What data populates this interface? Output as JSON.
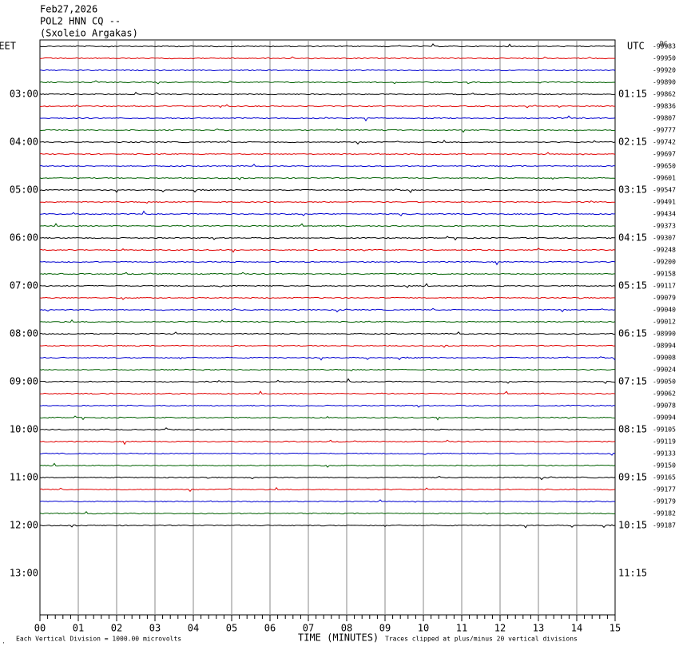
{
  "header": {
    "lines": [
      "Feb27,2026",
      "POL2 HNN CQ --",
      "(Sxoleio Argakas)"
    ]
  },
  "left_labels": [
    "EET",
    "03:00",
    "04:00",
    "05:00",
    "06:00",
    "07:00",
    "08:00",
    "09:00",
    "10:00",
    "11:00",
    "12:00",
    "13:00"
  ],
  "right_labels": [
    "UTC",
    "01:15",
    "02:15",
    "03:15",
    "04:15",
    "05:15",
    "06:15",
    "07:15",
    "08:15",
    "09:15",
    "10:15",
    "11:15"
  ],
  "dc_label": "DC",
  "trace_offsets": [
    "-99983",
    "-99950",
    "-99920",
    "-99890",
    "-99862",
    "-99836",
    "-99807",
    "-99777",
    "-99742",
    "-99697",
    "-99650",
    "-99601",
    "-99547",
    "-99491",
    "-99434",
    "-99373",
    "-99307",
    "-99248",
    "-99200",
    "-99158",
    "-99117",
    "-99079",
    "-99040",
    "-99012",
    "-98990",
    "-98994",
    "-99008",
    "-99024",
    "-99050",
    "-99062",
    "-99078",
    "-99094",
    "-99105",
    "-99119",
    "-99133",
    "-99150",
    "-99165",
    "-99177",
    "-99179",
    "-99182",
    "-99187"
  ],
  "x_axis": {
    "labels": [
      "00",
      "01",
      "02",
      "03",
      "04",
      "05",
      "06",
      "07",
      "08",
      "09",
      "10",
      "11",
      "12",
      "13",
      "14",
      "15"
    ],
    "title": "TIME (MINUTES)"
  },
  "footer": {
    "scale_note": "Each Vertical Division = 1000.00 microvolts",
    "clip_note": "Traces clipped at plus/minus 20 vertical divisions"
  }
}
